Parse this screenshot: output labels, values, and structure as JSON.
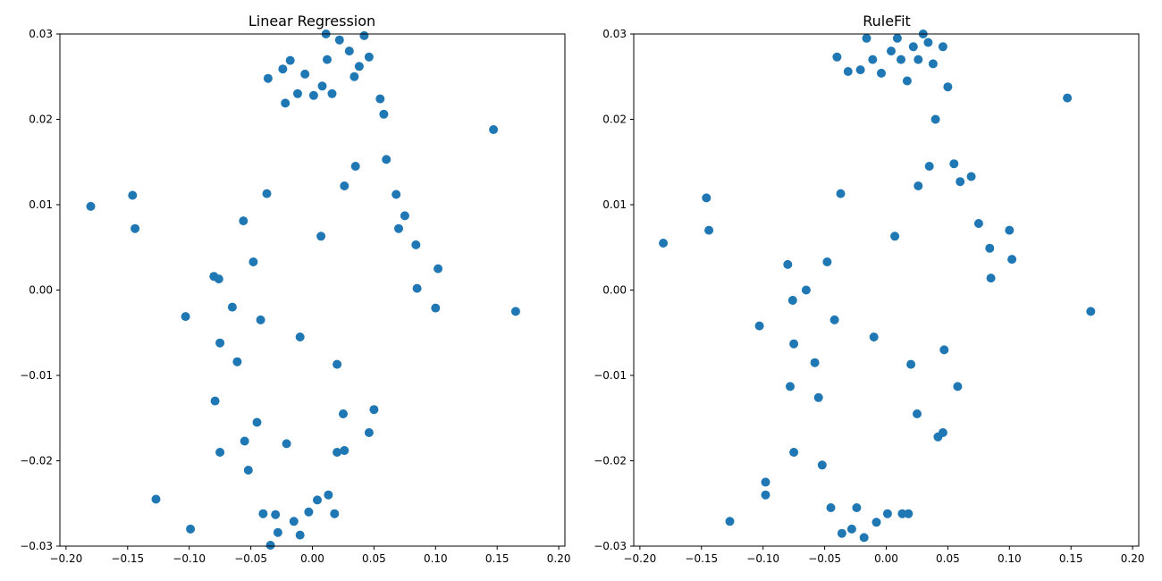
{
  "chart_data": [
    {
      "type": "scatter",
      "title": "Linear Regression",
      "xlabel": "",
      "ylabel": "",
      "xlim": [
        -0.205,
        0.205
      ],
      "ylim": [
        -0.03,
        0.03
      ],
      "xticks": [
        "−0.20",
        "−0.15",
        "−0.10",
        "−0.05",
        "0.00",
        "0.05",
        "0.10",
        "0.15",
        "0.20"
      ],
      "yticks": [
        "−0.03",
        "−0.02",
        "−0.01",
        "0.00",
        "0.01",
        "0.02",
        "0.03"
      ],
      "grid": false,
      "marker_color": "#1f77b4",
      "series": [
        {
          "x": [
            -0.18,
            -0.146,
            -0.144,
            -0.127,
            -0.103,
            -0.099,
            -0.08,
            -0.079,
            -0.076,
            -0.075,
            -0.075,
            -0.065,
            -0.061,
            -0.056,
            -0.055,
            -0.052,
            -0.045,
            -0.04,
            -0.036,
            -0.034,
            -0.03,
            -0.028,
            -0.024,
            -0.022,
            -0.021,
            -0.018,
            -0.015,
            -0.012,
            -0.01,
            -0.006,
            -0.003,
            0.001,
            0.004,
            0.008,
            0.011,
            0.013,
            0.016,
            0.02,
            0.022,
            0.026,
            0.03,
            0.034,
            0.038,
            0.042,
            0.046,
            0.05,
            0.055,
            0.058,
            0.06,
            0.068,
            0.07,
            0.075,
            0.084,
            0.085,
            0.1,
            0.102,
            0.147,
            0.165,
            -0.048,
            -0.042,
            0.012,
            0.018,
            0.025,
            0.046,
            0.035,
            -0.037,
            0.02,
            0.007,
            -0.01,
            0.026
          ],
          "y": [
            0.0098,
            0.0111,
            0.0072,
            -0.0245,
            -0.0031,
            -0.028,
            0.0016,
            -0.013,
            0.0013,
            -0.0062,
            -0.019,
            -0.002,
            -0.0084,
            0.0081,
            -0.0177,
            -0.0211,
            -0.0155,
            -0.0262,
            0.0248,
            -0.0299,
            -0.0263,
            -0.0284,
            0.0259,
            0.0219,
            -0.018,
            0.0269,
            -0.0271,
            0.023,
            -0.0287,
            0.0253,
            -0.026,
            0.0228,
            -0.0246,
            0.0239,
            0.03,
            -0.024,
            0.023,
            -0.019,
            0.0293,
            -0.0188,
            0.028,
            0.025,
            0.0262,
            0.0298,
            0.0273,
            -0.014,
            0.0224,
            0.0206,
            0.0153,
            0.0112,
            0.0072,
            0.0087,
            0.0053,
            0.0002,
            -0.0021,
            0.0025,
            0.0188,
            -0.0025,
            0.0033,
            -0.0035,
            0.027,
            -0.0262,
            -0.0145,
            -0.0167,
            0.0145,
            0.0113,
            -0.0087,
            0.0063,
            -0.0055,
            0.0122
          ]
        }
      ]
    },
    {
      "type": "scatter",
      "title": "RuleFit",
      "xlabel": "",
      "ylabel": "",
      "xlim": [
        -0.205,
        0.205
      ],
      "ylim": [
        -0.03,
        0.03
      ],
      "xticks": [
        "−0.20",
        "−0.15",
        "−0.10",
        "−0.05",
        "0.00",
        "0.05",
        "0.10",
        "0.15",
        "0.20"
      ],
      "yticks": [
        "−0.03",
        "−0.02",
        "−0.01",
        "0.00",
        "0.01",
        "0.02",
        "0.03"
      ],
      "grid": false,
      "marker_color": "#1f77b4",
      "series": [
        {
          "x": [
            -0.181,
            -0.146,
            -0.144,
            -0.127,
            -0.103,
            -0.098,
            -0.098,
            -0.08,
            -0.078,
            -0.076,
            -0.075,
            -0.075,
            -0.065,
            -0.058,
            -0.055,
            -0.052,
            -0.045,
            -0.04,
            -0.036,
            -0.031,
            -0.028,
            -0.024,
            -0.021,
            -0.018,
            -0.016,
            -0.011,
            -0.008,
            -0.004,
            0.001,
            0.004,
            0.009,
            0.013,
            0.017,
            0.022,
            0.026,
            0.03,
            0.034,
            0.038,
            0.042,
            0.046,
            0.05,
            0.055,
            0.058,
            0.06,
            0.069,
            0.075,
            0.084,
            0.085,
            0.1,
            0.102,
            0.147,
            0.166,
            -0.048,
            -0.042,
            0.012,
            0.018,
            0.025,
            0.046,
            0.035,
            -0.037,
            0.02,
            0.007,
            -0.01,
            0.026,
            0.04,
            0.047
          ],
          "y": [
            0.0055,
            0.0108,
            0.007,
            -0.0271,
            -0.0042,
            -0.0225,
            -0.024,
            0.003,
            -0.0113,
            -0.0012,
            -0.0063,
            -0.019,
            0.0,
            -0.0085,
            -0.0126,
            -0.0205,
            -0.0255,
            0.0273,
            -0.0285,
            0.0256,
            -0.028,
            -0.0255,
            0.0258,
            -0.029,
            0.0295,
            0.027,
            -0.0272,
            0.0254,
            -0.0262,
            0.028,
            0.0295,
            -0.0262,
            0.0245,
            0.0285,
            0.027,
            0.03,
            0.029,
            0.0265,
            -0.0172,
            0.0285,
            0.0238,
            0.0148,
            -0.0113,
            0.0127,
            0.0133,
            0.0078,
            0.0049,
            0.0014,
            0.007,
            0.0036,
            0.0225,
            -0.0025,
            0.0033,
            -0.0035,
            0.027,
            -0.0262,
            -0.0145,
            -0.0167,
            0.0145,
            0.0113,
            -0.0087,
            0.0063,
            -0.0055,
            0.0122,
            0.02,
            -0.007
          ]
        }
      ]
    }
  ]
}
